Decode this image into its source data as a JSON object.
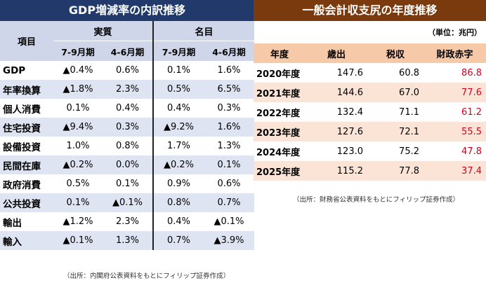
{
  "left": {
    "title": "GDP増減率の内訳推移",
    "col_item": "項目",
    "group_real": "実質",
    "group_nominal": "名目",
    "sub": [
      "7-9月期",
      "4-6月期",
      "7-9月期",
      "4-6月期"
    ],
    "rows": [
      {
        "label": "GDP",
        "v": [
          "▲0.4%",
          "0.6%",
          "0.1%",
          "1.6%"
        ]
      },
      {
        "label": "年率換算",
        "v": [
          "▲1.8%",
          "2.3%",
          "0.5%",
          "6.5%"
        ]
      },
      {
        "label": "個人消費",
        "v": [
          "0.1%",
          "0.4%",
          "0.4%",
          "0.3%"
        ]
      },
      {
        "label": "住宅投資",
        "v": [
          "▲9.4%",
          "0.3%",
          "▲9.2%",
          "1.6%"
        ]
      },
      {
        "label": "設備投資",
        "v": [
          "1.0%",
          "0.8%",
          "1.7%",
          "1.3%"
        ]
      },
      {
        "label": "民間在庫",
        "v": [
          "▲0.2%",
          "0.0%",
          "▲0.2%",
          "0.1%"
        ]
      },
      {
        "label": "政府消費",
        "v": [
          "0.5%",
          "0.1%",
          "0.9%",
          "0.6%"
        ]
      },
      {
        "label": "公共投資",
        "v": [
          "0.1%",
          "▲0.1%",
          "0.8%",
          "0.7%"
        ]
      },
      {
        "label": "輸出",
        "v": [
          "▲1.2%",
          "2.3%",
          "0.4%",
          "▲0.1%"
        ]
      },
      {
        "label": "輸入",
        "v": [
          "▲0.1%",
          "1.3%",
          "0.7%",
          "▲3.9%"
        ]
      }
    ],
    "source": "（出所：内閣府公表資料をもとにフィリップ証券作成）"
  },
  "right": {
    "title": "一般会計収支尻の年度推移",
    "unit": "（単位：兆円）",
    "headers": [
      "年度",
      "歳出",
      "税収",
      "財政赤字"
    ],
    "rows": [
      {
        "year": "2020年度",
        "spend": "147.6",
        "tax": "60.8",
        "deficit": "86.8"
      },
      {
        "year": "2021年度",
        "spend": "144.6",
        "tax": "67.0",
        "deficit": "77.6"
      },
      {
        "year": "2022年度",
        "spend": "132.4",
        "tax": "71.1",
        "deficit": "61.2"
      },
      {
        "year": "2023年度",
        "spend": "127.6",
        "tax": "72.1",
        "deficit": "55.5"
      },
      {
        "year": "2024年度",
        "spend": "123.0",
        "tax": "75.2",
        "deficit": "47.8"
      },
      {
        "year": "2025年度",
        "spend": "115.2",
        "tax": "77.8",
        "deficit": "37.4"
      }
    ],
    "source": "（出所：財務省公表資料をもとにフィリップ証券作成）"
  },
  "colors": {
    "left_title_bg": "#213a6b",
    "right_title_bg": "#7a3a0e",
    "deficit_text": "#d8001c"
  }
}
